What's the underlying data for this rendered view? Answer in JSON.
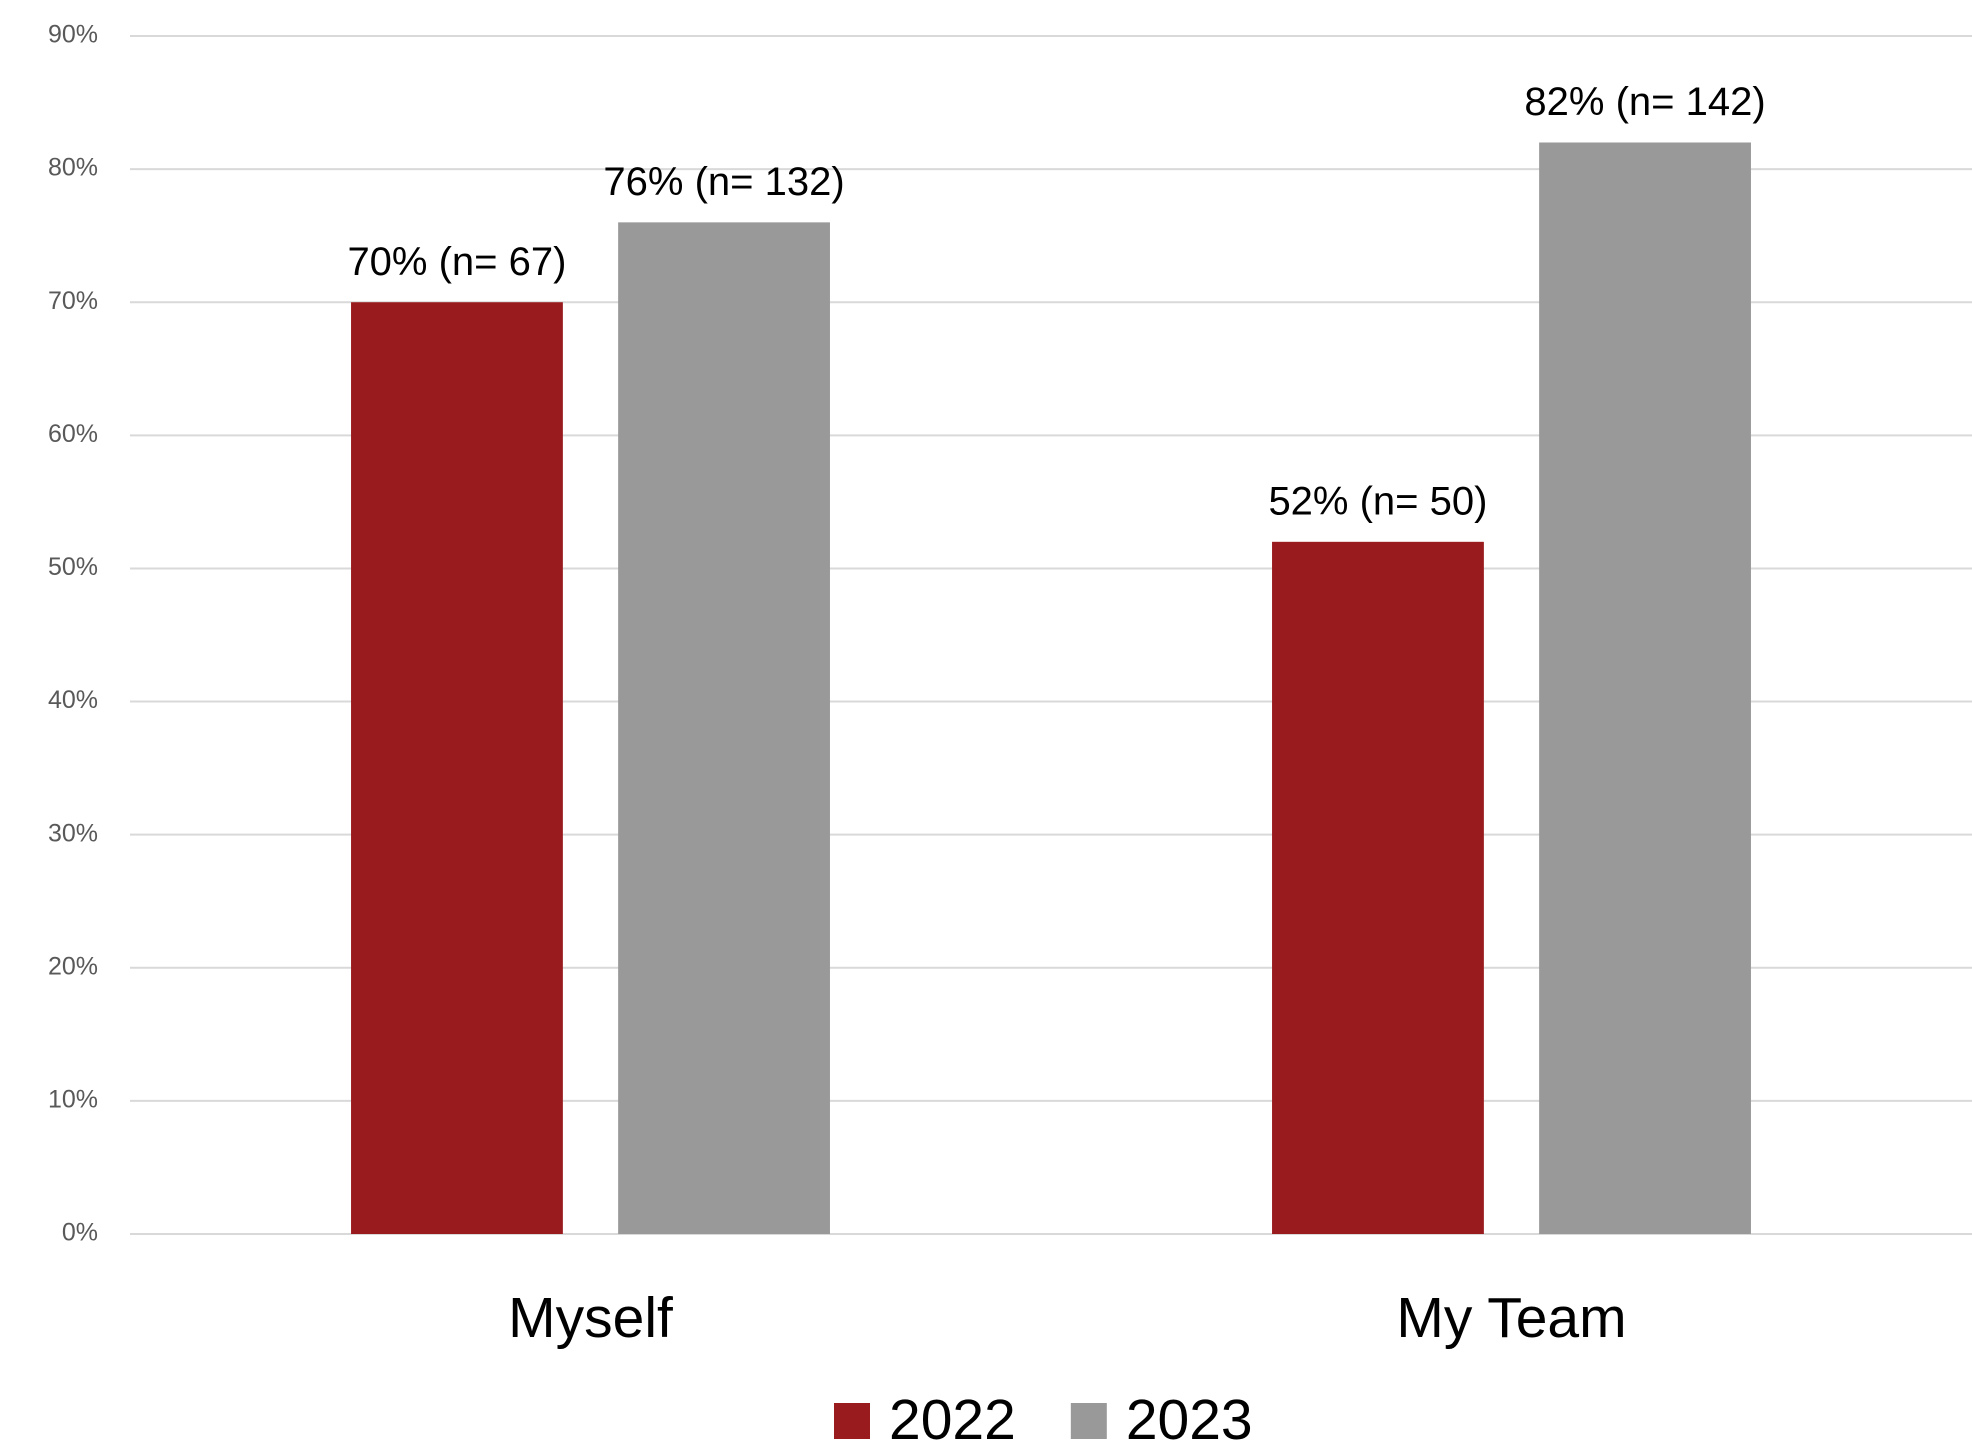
{
  "chart_data": {
    "type": "bar",
    "categories": [
      "Myself",
      "My Team"
    ],
    "series": [
      {
        "name": "2022",
        "color": "#991b1e",
        "values": [
          70,
          52
        ],
        "value_labels": [
          "70% (n= 67)",
          "52% (n= 50)"
        ]
      },
      {
        "name": "2023",
        "color": "#999999",
        "values": [
          76,
          82
        ],
        "value_labels": [
          "76% (n= 132)",
          "82% (n= 142)"
        ]
      }
    ],
    "ylim": [
      0,
      90
    ],
    "yticks": [
      {
        "value": 0,
        "label": "0%"
      },
      {
        "value": 10,
        "label": "10%"
      },
      {
        "value": 20,
        "label": "20%"
      },
      {
        "value": 30,
        "label": "30%"
      },
      {
        "value": 40,
        "label": "40%"
      },
      {
        "value": 50,
        "label": "50%"
      },
      {
        "value": 60,
        "label": "60%"
      },
      {
        "value": 70,
        "label": "70%"
      },
      {
        "value": 80,
        "label": "80%"
      },
      {
        "value": 90,
        "label": "90%"
      }
    ],
    "grid": true,
    "legend": "bottom"
  }
}
